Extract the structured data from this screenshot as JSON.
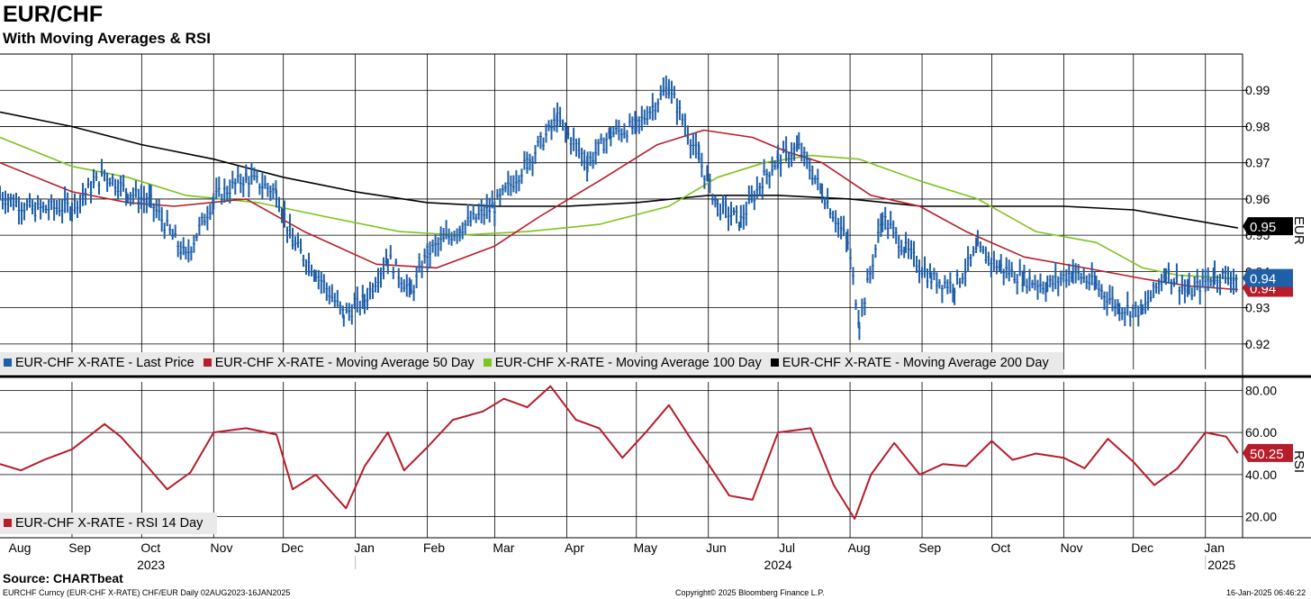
{
  "header": {
    "title": "EUR/CHF",
    "subtitle": "With Moving Averages & RSI"
  },
  "footer": {
    "source": "Source: CHARTbeat",
    "ticker": "EURCHF Curncy (EUR-CHF X-RATE) CHF/EUR  Daily 02AUG2023-16JAN2025",
    "copyright": "Copyright© 2025 Bloomberg Finance L.P.",
    "timestamp": "16-Jan-2025 06:46:22"
  },
  "chart_data": [
    {
      "type": "line",
      "panel": "price",
      "ylabel": "EUR",
      "ylim": [
        0.913,
        1.0
      ],
      "yticks": [
        "0.99",
        "0.98",
        "0.97",
        "0.96",
        "0.95",
        "0.94",
        "0.93",
        "0.92"
      ],
      "grid": true,
      "legend_position": "bottom-left",
      "colors": {
        "last_price": "#1f5fa8",
        "ma50": "#b71c2a",
        "ma100": "#7fc31c",
        "ma200": "#000000"
      },
      "x_months": [
        "Aug",
        "Sep",
        "Oct",
        "Nov",
        "Dec",
        "Jan",
        "Feb",
        "Mar",
        "Apr",
        "May",
        "Jun",
        "Jul",
        "Aug",
        "Sep",
        "Oct",
        "Nov",
        "Dec",
        "Jan"
      ],
      "x_years": [
        "2023",
        "2024",
        "2025"
      ],
      "last_price_labels": [
        "0.95",
        "0.94",
        "0.94"
      ],
      "series": [
        {
          "name": "EUR-CHF X-RATE - Last Price",
          "x": [
            "2023-08-01",
            "2023-08-15",
            "2023-09-01",
            "2023-09-15",
            "2023-09-25",
            "2023-10-05",
            "2023-10-20",
            "2023-11-01",
            "2023-11-15",
            "2023-11-28",
            "2023-12-05",
            "2023-12-15",
            "2023-12-27",
            "2024-01-05",
            "2024-01-15",
            "2024-01-25",
            "2024-02-01",
            "2024-02-15",
            "2024-03-01",
            "2024-03-15",
            "2024-03-28",
            "2024-04-10",
            "2024-04-20",
            "2024-05-01",
            "2024-05-15",
            "2024-05-28",
            "2024-06-05",
            "2024-06-15",
            "2024-06-25",
            "2024-07-01",
            "2024-07-10",
            "2024-07-20",
            "2024-07-31",
            "2024-08-05",
            "2024-08-15",
            "2024-08-25",
            "2024-09-05",
            "2024-09-15",
            "2024-09-25",
            "2024-10-05",
            "2024-10-15",
            "2024-10-25",
            "2024-11-05",
            "2024-11-15",
            "2024-11-25",
            "2024-12-05",
            "2024-12-15",
            "2024-12-25",
            "2025-01-05",
            "2025-01-15"
          ],
          "values": [
            0.961,
            0.957,
            0.958,
            0.967,
            0.962,
            0.959,
            0.944,
            0.96,
            0.966,
            0.962,
            0.948,
            0.94,
            0.928,
            0.932,
            0.944,
            0.934,
            0.945,
            0.952,
            0.958,
            0.97,
            0.982,
            0.97,
            0.978,
            0.98,
            0.991,
            0.971,
            0.958,
            0.954,
            0.966,
            0.971,
            0.974,
            0.962,
            0.948,
            0.926,
            0.955,
            0.946,
            0.938,
            0.936,
            0.946,
            0.941,
            0.938,
            0.936,
            0.94,
            0.936,
            0.93,
            0.929,
            0.94,
            0.934,
            0.939,
            0.938
          ]
        },
        {
          "name": "EUR-CHF X-RATE - Moving Average 50 Day",
          "x": [
            "2023-08-01",
            "2023-09-01",
            "2023-09-25",
            "2023-10-15",
            "2023-11-15",
            "2023-12-10",
            "2024-01-10",
            "2024-02-05",
            "2024-03-01",
            "2024-03-20",
            "2024-04-15",
            "2024-05-10",
            "2024-05-30",
            "2024-06-20",
            "2024-07-05",
            "2024-07-20",
            "2024-08-10",
            "2024-08-31",
            "2024-09-20",
            "2024-10-15",
            "2024-11-10",
            "2024-12-05",
            "2024-12-25",
            "2025-01-15"
          ],
          "values": [
            0.97,
            0.962,
            0.959,
            0.958,
            0.96,
            0.951,
            0.942,
            0.941,
            0.947,
            0.955,
            0.965,
            0.975,
            0.979,
            0.977,
            0.973,
            0.97,
            0.961,
            0.958,
            0.951,
            0.944,
            0.941,
            0.938,
            0.936,
            0.935
          ]
        },
        {
          "name": "EUR-CHF X-RATE - Moving Average 100 Day",
          "x": [
            "2023-08-01",
            "2023-09-01",
            "2023-09-25",
            "2023-10-20",
            "2023-11-20",
            "2023-12-20",
            "2024-01-20",
            "2024-02-15",
            "2024-03-15",
            "2024-04-15",
            "2024-05-15",
            "2024-06-05",
            "2024-06-25",
            "2024-07-15",
            "2024-08-05",
            "2024-08-31",
            "2024-09-25",
            "2024-10-20",
            "2024-11-15",
            "2024-12-05",
            "2024-12-20",
            "2025-01-15"
          ],
          "values": [
            0.977,
            0.969,
            0.966,
            0.961,
            0.959,
            0.955,
            0.951,
            0.95,
            0.951,
            0.953,
            0.958,
            0.966,
            0.97,
            0.972,
            0.971,
            0.965,
            0.96,
            0.951,
            0.948,
            0.941,
            0.939,
            0.938
          ]
        },
        {
          "name": "EUR-CHF X-RATE - Moving Average 200 Day",
          "x": [
            "2023-08-01",
            "2023-09-01",
            "2023-10-01",
            "2023-11-01",
            "2023-12-01",
            "2024-01-01",
            "2024-02-01",
            "2024-03-01",
            "2024-04-01",
            "2024-05-01",
            "2024-06-01",
            "2024-07-01",
            "2024-08-01",
            "2024-09-01",
            "2024-10-01",
            "2024-11-01",
            "2024-12-01",
            "2025-01-15"
          ],
          "values": [
            0.984,
            0.98,
            0.975,
            0.971,
            0.966,
            0.962,
            0.959,
            0.958,
            0.958,
            0.959,
            0.961,
            0.961,
            0.96,
            0.958,
            0.958,
            0.958,
            0.957,
            0.952
          ]
        }
      ]
    },
    {
      "type": "line",
      "panel": "rsi",
      "ylabel": "RSI",
      "ylim": [
        10,
        84
      ],
      "yticks": [
        "80.00",
        "60.00",
        "40.00",
        "20.00"
      ],
      "last_value_label": "50.25",
      "series": [
        {
          "name": "EUR-CHF X-RATE - RSI 14 Day",
          "color": "#b71c2a",
          "x": [
            "2023-08-01",
            "2023-08-10",
            "2023-08-20",
            "2023-09-01",
            "2023-09-15",
            "2023-09-22",
            "2023-10-01",
            "2023-10-12",
            "2023-10-22",
            "2023-11-01",
            "2023-11-15",
            "2023-11-28",
            "2023-12-05",
            "2023-12-15",
            "2023-12-28",
            "2024-01-05",
            "2024-01-15",
            "2024-01-22",
            "2024-02-01",
            "2024-02-12",
            "2024-02-25",
            "2024-03-05",
            "2024-03-15",
            "2024-03-25",
            "2024-04-05",
            "2024-04-15",
            "2024-04-25",
            "2024-05-05",
            "2024-05-15",
            "2024-05-25",
            "2024-06-01",
            "2024-06-10",
            "2024-06-20",
            "2024-07-01",
            "2024-07-15",
            "2024-07-25",
            "2024-08-03",
            "2024-08-10",
            "2024-08-20",
            "2024-08-31",
            "2024-09-10",
            "2024-09-20",
            "2024-10-01",
            "2024-10-10",
            "2024-10-20",
            "2024-11-01",
            "2024-11-10",
            "2024-11-20",
            "2024-12-01",
            "2024-12-10",
            "2024-12-20",
            "2025-01-01",
            "2025-01-10",
            "2025-01-15"
          ],
          "values": [
            45,
            42,
            47,
            52,
            64,
            58,
            47,
            33,
            41,
            60,
            62,
            59,
            33,
            40,
            24,
            44,
            60,
            42,
            53,
            66,
            70,
            76,
            72,
            82,
            66,
            62,
            48,
            60,
            73,
            56,
            45,
            30,
            28,
            60,
            62,
            35,
            19,
            40,
            55,
            40,
            45,
            44,
            56,
            47,
            50,
            48,
            43,
            57,
            46,
            35,
            43,
            60,
            58,
            50.25
          ]
        }
      ]
    }
  ],
  "legend": {
    "price_items": [
      {
        "label": "EUR-CHF X-RATE - Last Price",
        "color": "#1f5fa8"
      },
      {
        "label": "EUR-CHF X-RATE - Moving Average 50 Day",
        "color": "#b71c2a"
      },
      {
        "label": "EUR-CHF X-RATE - Moving Average 100 Day",
        "color": "#7fc31c"
      },
      {
        "label": "EUR-CHF X-RATE - Moving Average 200 Day",
        "color": "#000000"
      }
    ],
    "rsi_items": [
      {
        "label": "EUR-CHF X-RATE - RSI 14 Day",
        "color": "#b71c2a"
      }
    ]
  }
}
